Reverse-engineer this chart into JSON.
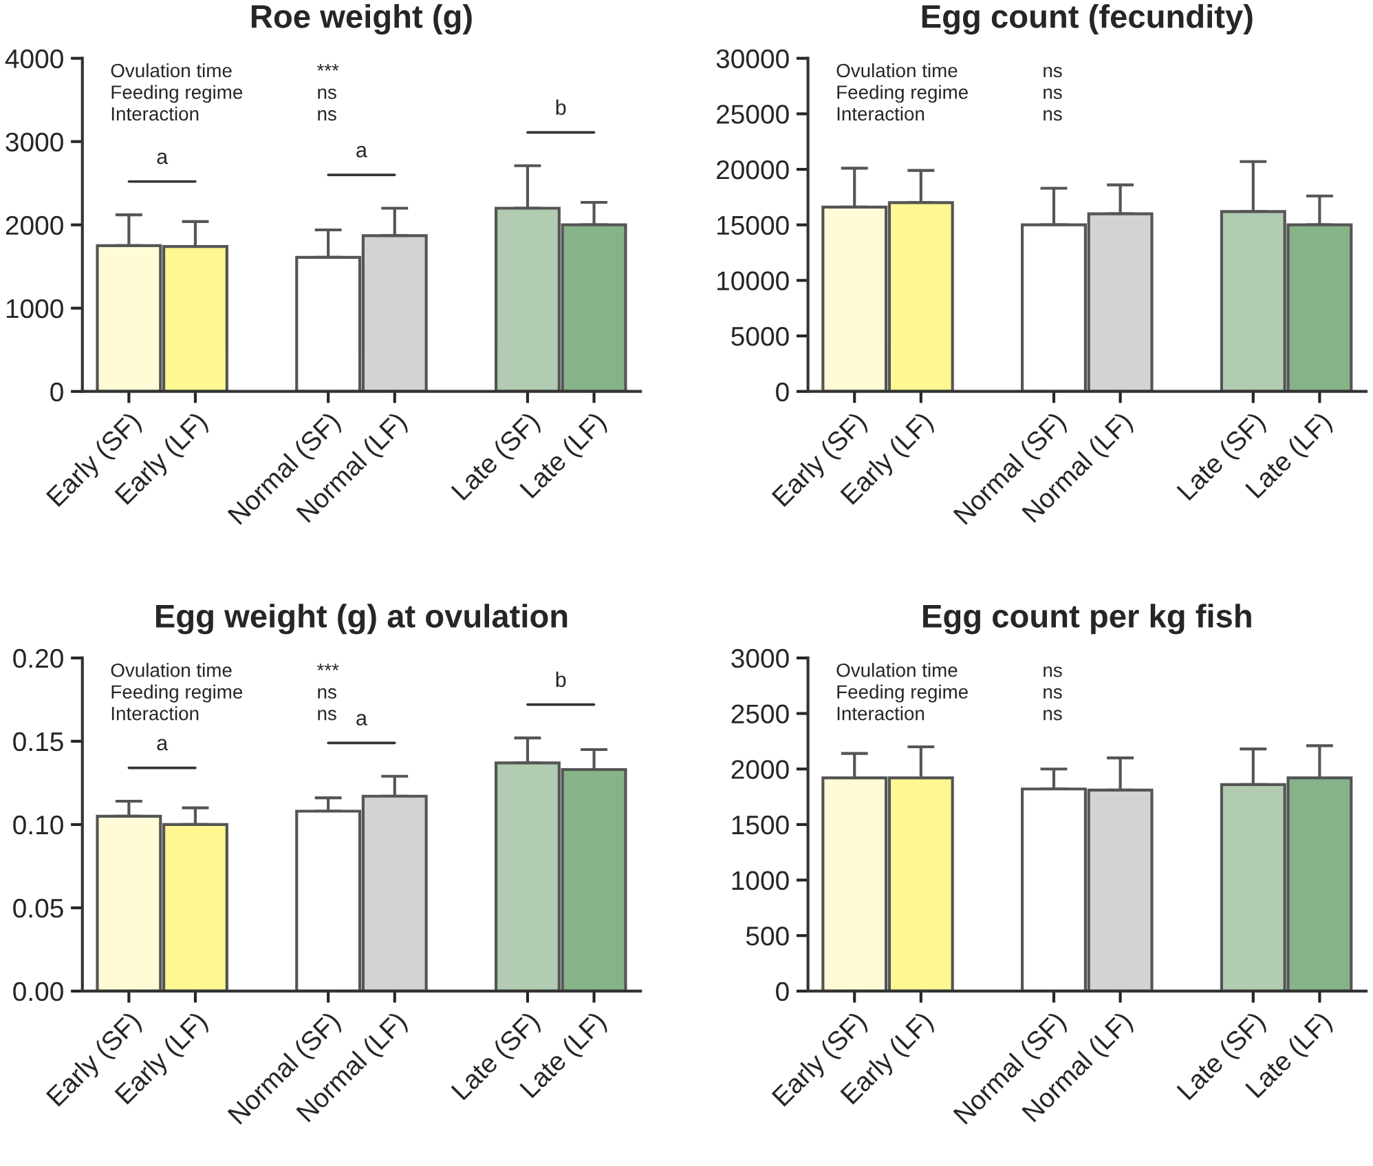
{
  "chart_data": [
    {
      "type": "bar",
      "title": "Roe weight (g)",
      "categories": [
        "Early (SF)",
        "Early (LF)",
        null,
        "Normal (SF)",
        "Normal (LF)",
        null,
        "Late (SF)",
        "Late (LF)"
      ],
      "values": [
        1750,
        1740,
        null,
        1610,
        1870,
        null,
        2200,
        2000
      ],
      "errors": [
        [
          1750,
          2120
        ],
        [
          1740,
          2040
        ],
        null,
        [
          1610,
          1940
        ],
        [
          1870,
          2200
        ],
        null,
        [
          2200,
          2710
        ],
        [
          2000,
          2270
        ]
      ],
      "colors": [
        "#fffbd6",
        "#fff792",
        "#ffffff",
        "#ffffff",
        "#d3d3d3",
        "#ffffff",
        "#b1ccb1",
        "#86b388"
      ],
      "ylim": [
        0,
        4000
      ],
      "yticks": [
        0,
        1000,
        2000,
        3000,
        4000
      ],
      "grid": false,
      "legend": false,
      "annotations": [
        "Ovulation time",
        "***",
        "Feeding regime",
        "ns",
        "Interaction",
        "ns",
        "a",
        "a",
        "b"
      ]
    },
    {
      "type": "bar",
      "title": "Egg count (fecundity)",
      "categories": [
        "Early (SF)",
        "Early (LF)",
        null,
        "Normal (SF)",
        "Normal (LF)",
        null,
        "Late (SF)",
        "Late (LF)"
      ],
      "values": [
        16600,
        17000,
        null,
        15000,
        16000,
        null,
        16200,
        15000
      ],
      "errors": [
        [
          16600,
          20100
        ],
        [
          17000,
          19900
        ],
        null,
        [
          15000,
          18300
        ],
        [
          16000,
          18600
        ],
        null,
        [
          16200,
          20700
        ],
        [
          15000,
          17600
        ]
      ],
      "colors": [
        "#fffbd6",
        "#fff792",
        "#ffffff",
        "#ffffff",
        "#d3d3d3",
        "#ffffff",
        "#b1ccb1",
        "#86b388"
      ],
      "ylim": [
        0,
        30000
      ],
      "yticks": [
        0,
        5000,
        10000,
        15000,
        20000,
        25000,
        30000
      ],
      "grid": false,
      "legend": false,
      "annotations": [
        "Ovulation time",
        "ns",
        "Feeding regime",
        "ns",
        "Interaction",
        "ns"
      ]
    },
    {
      "type": "bar",
      "title": "Egg weight (g) at ovulation",
      "categories": [
        "Early (SF)",
        "Early (LF)",
        null,
        "Normal (SF)",
        "Normal (LF)",
        null,
        "Late (SF)",
        "Late (LF)"
      ],
      "values": [
        0.105,
        0.1,
        null,
        0.108,
        0.117,
        null,
        0.137,
        0.133
      ],
      "errors": [
        [
          0.105,
          0.114
        ],
        [
          0.1,
          0.11
        ],
        null,
        [
          0.108,
          0.116
        ],
        [
          0.117,
          0.129
        ],
        null,
        [
          0.137,
          0.152
        ],
        [
          0.133,
          0.145
        ]
      ],
      "colors": [
        "#fffbd6",
        "#fff792",
        "#ffffff",
        "#ffffff",
        "#d3d3d3",
        "#ffffff",
        "#b1ccb1",
        "#86b388"
      ],
      "ylim": [
        0,
        0.2
      ],
      "yticks": [
        {
          "value": 0,
          "label": "0.00"
        },
        {
          "value": 0.05,
          "label": "0.05"
        },
        {
          "value": 0.1,
          "label": "0.10"
        },
        {
          "value": 0.15,
          "label": "0.15"
        },
        {
          "value": 0.2,
          "label": "0.20"
        }
      ],
      "grid": false,
      "legend": false,
      "annotations": [
        "Ovulation time",
        "***",
        "Feeding regime",
        "ns",
        "Interaction",
        "ns",
        "a",
        "a",
        "b"
      ]
    },
    {
      "type": "bar",
      "title": "Egg count per kg fish",
      "categories": [
        "Early (SF)",
        "Early (LF)",
        null,
        "Normal (SF)",
        "Normal (LF)",
        null,
        "Late (SF)",
        "Late (LF)"
      ],
      "values": [
        1920,
        1920,
        null,
        1820,
        1810,
        null,
        1860,
        1920
      ],
      "errors": [
        [
          1920,
          2140
        ],
        [
          1920,
          2200
        ],
        null,
        [
          1820,
          2000
        ],
        [
          1810,
          2100
        ],
        null,
        [
          1860,
          2180
        ],
        [
          1920,
          2210
        ]
      ],
      "colors": [
        "#fffbd6",
        "#fff792",
        "#ffffff",
        "#ffffff",
        "#d3d3d3",
        "#ffffff",
        "#b1ccb1",
        "#86b388"
      ],
      "ylim": [
        0,
        3000
      ],
      "yticks": [
        0,
        500,
        1000,
        1500,
        2000,
        2500,
        3000
      ],
      "grid": false,
      "legend": false,
      "annotations": [
        "Ovulation time",
        "ns",
        "Feeding regime",
        "ns",
        "Interaction",
        "ns"
      ]
    }
  ]
}
